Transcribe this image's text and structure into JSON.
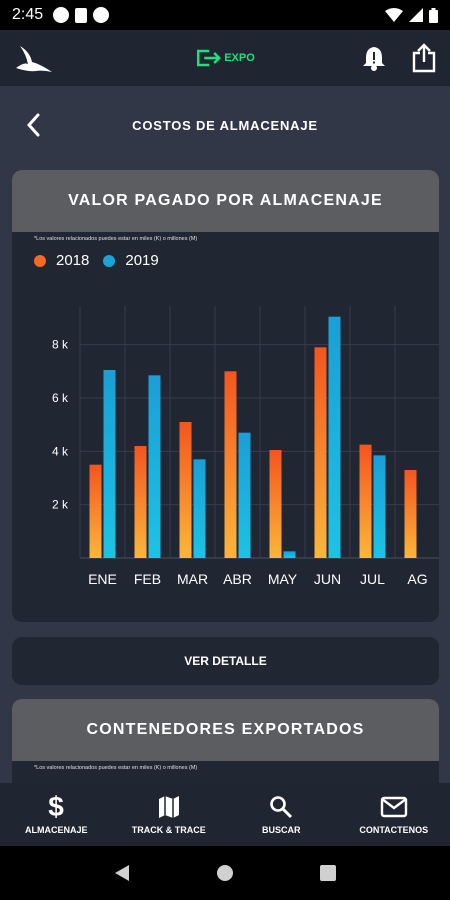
{
  "status_bar": {
    "time": "2:45"
  },
  "header": {
    "logo_text": "EXPO"
  },
  "page": {
    "title": "COSTOS DE ALMACENAJE"
  },
  "card1": {
    "title": "VALOR PAGADO POR ALMACENAJE",
    "note": "*Los valores relacionados puedes estar en miles (K) o millones (M)",
    "legend": [
      {
        "label": "2018",
        "color": "#f36a22"
      },
      {
        "label": "2019",
        "color": "#1aa5d8"
      }
    ]
  },
  "detail_button": {
    "label": "VER DETALLE"
  },
  "card2": {
    "title": "CONTENEDORES EXPORTADOS",
    "note": "*Los valores relacionados puedes estar en miles (K) o millones (M)"
  },
  "bottom_nav": [
    {
      "label": "ALMACENAJE",
      "icon": "dollar-icon"
    },
    {
      "label": "TRACK & TRACE",
      "icon": "map-icon"
    },
    {
      "label": "BUSCAR",
      "icon": "search-icon"
    },
    {
      "label": "CONTACTENOS",
      "icon": "mail-icon"
    }
  ],
  "chart_data": {
    "type": "bar",
    "categories": [
      "ENE",
      "FEB",
      "MAR",
      "ABR",
      "MAY",
      "JUN",
      "JUL",
      "AG"
    ],
    "series": [
      {
        "name": "2018",
        "color": "#f36a22",
        "values": [
          3.5,
          4.2,
          5.1,
          7.0,
          4.05,
          7.9,
          4.25,
          3.3
        ]
      },
      {
        "name": "2019",
        "color": "#1aa5d8",
        "values": [
          7.05,
          6.85,
          3.7,
          4.7,
          0.25,
          9.05,
          3.85,
          null
        ]
      }
    ],
    "yticks": [
      "2 k",
      "4 k",
      "6 k",
      "8 k"
    ],
    "ytick_values": [
      2,
      4,
      6,
      8
    ],
    "ylim": [
      0,
      9.3
    ],
    "grid": true
  }
}
